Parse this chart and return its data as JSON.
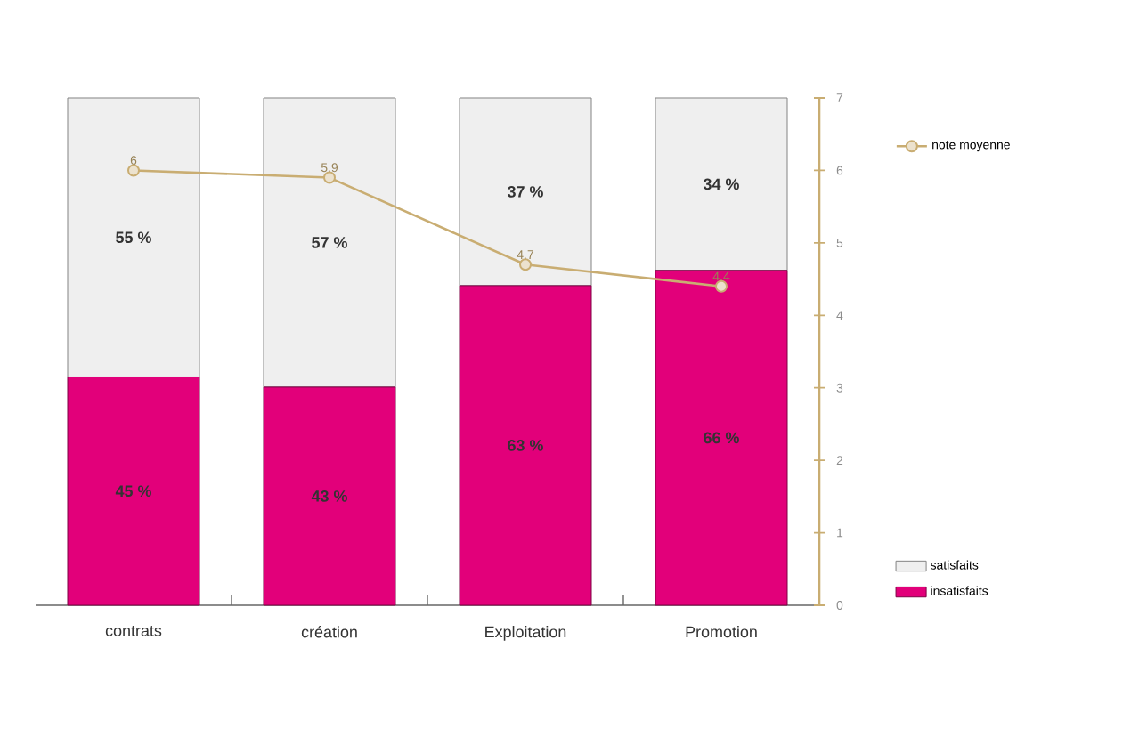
{
  "chart_data": {
    "type": "bar",
    "categories": [
      "contrats",
      "création",
      "Exploitation",
      "Promotion"
    ],
    "stacked": true,
    "ylim": [
      0,
      100
    ],
    "y2lim": [
      0,
      7
    ],
    "y2ticks": [
      0,
      1,
      2,
      3,
      4,
      5,
      6,
      7
    ],
    "legend": "right",
    "series": [
      {
        "name": "insatisfaits",
        "color": "#e2007a",
        "values": [
          45,
          43,
          63,
          66
        ],
        "value_labels": [
          "45 %",
          "43 %",
          "63 %",
          "66 %"
        ]
      },
      {
        "name": "satisfaits",
        "color": "#efefef",
        "values": [
          55,
          57,
          37,
          34
        ],
        "value_labels": [
          "55 %",
          "57 %",
          "37 %",
          "34 %"
        ]
      },
      {
        "name": "note moyenne",
        "type": "line",
        "axis": "y2",
        "color": "#c9ad72",
        "marker": "circle",
        "line_style": "solid",
        "values": [
          6,
          5.9,
          4.7,
          4.4
        ],
        "value_labels": [
          "6",
          "5.9",
          "4.7",
          "4.4"
        ]
      }
    ]
  }
}
